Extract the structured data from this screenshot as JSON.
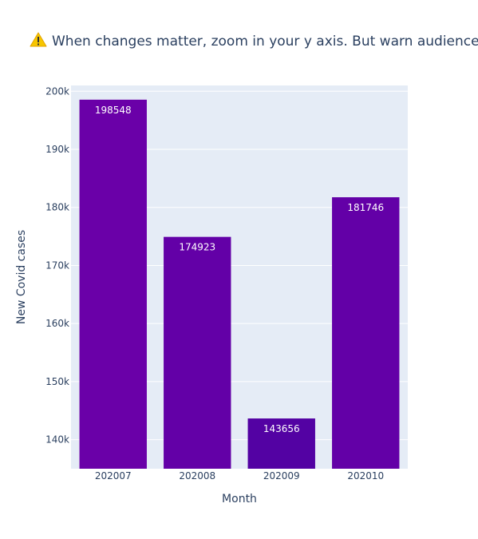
{
  "chart_data": {
    "type": "bar",
    "title": "When changes matter, zoom in your y axis. But warn audiences!",
    "title_icon": "warning-icon",
    "xlabel": "Month",
    "ylabel": "New Covid cases",
    "categories": [
      "202007",
      "202008",
      "202009",
      "202010"
    ],
    "values": [
      198548,
      174923,
      143656,
      181746
    ],
    "data_labels": [
      "198548",
      "174923",
      "143656",
      "181746"
    ],
    "bar_colors": [
      "#6a00a8",
      "#6300a7",
      "#5302a3",
      "#6300a7"
    ],
    "ylim": [
      135000,
      201000
    ],
    "yticks": [
      140000,
      150000,
      160000,
      170000,
      180000,
      190000,
      200000
    ],
    "ytick_labels": [
      "140k",
      "150k",
      "160k",
      "170k",
      "180k",
      "190k",
      "200k"
    ],
    "grid": true,
    "plot_background": "#e5ecf6",
    "text_color": "#2a3f5f"
  }
}
